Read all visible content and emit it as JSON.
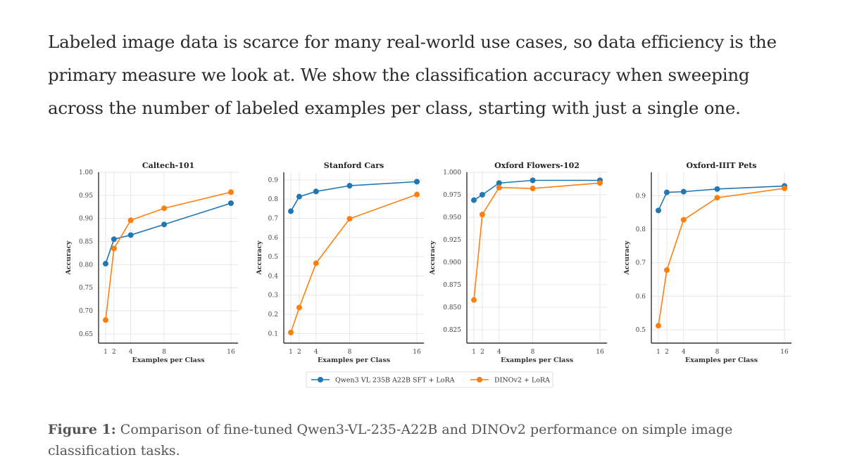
{
  "intro_text": "Labeled image data is scarce for many real-world use cases, so data efficiency is the primary measure we look at. We show the classification accuracy when sweeping across the number of labeled examples per class, starting with just a single one.",
  "caption": {
    "label": "Figure 1:",
    "text": " Comparison of fine-tuned Qwen3-VL-235-A22B and DINOv2 performance on simple image classification tasks."
  },
  "colors": {
    "qwen": "#1f77b4",
    "dino": "#ff7f0e",
    "grid": "#e6e6e6",
    "axis": "#333333"
  },
  "legend": [
    {
      "label": "Qwen3 VL 235B A22B SFT + LoRA",
      "color": "#1f77b4"
    },
    {
      "label": "DINOv2 + LoRA",
      "color": "#ff7f0e"
    }
  ],
  "chart_data": [
    {
      "type": "line",
      "title": "Caltech-101",
      "xlabel": "Examples per Class",
      "ylabel": "Accuracy",
      "x": [
        1,
        2,
        4,
        8,
        16
      ],
      "xticks": [
        "1",
        "2",
        "4",
        "8",
        "16"
      ],
      "yticks": [
        "0.65",
        "0.70",
        "0.75",
        "0.80",
        "0.85",
        "0.90",
        "0.95",
        "1.00"
      ],
      "ylim": [
        0.63,
        1.0
      ],
      "grid": true,
      "series": [
        {
          "name": "Qwen3 VL 235B A22B SFT + LoRA",
          "values": [
            0.802,
            0.855,
            0.864,
            0.887,
            0.933
          ]
        },
        {
          "name": "DINOv2 + LoRA",
          "values": [
            0.68,
            0.835,
            0.896,
            0.922,
            0.957
          ]
        }
      ]
    },
    {
      "type": "line",
      "title": "Stanford Cars",
      "xlabel": "Examples per Class",
      "ylabel": "Accuracy",
      "x": [
        1,
        2,
        4,
        8,
        16
      ],
      "xticks": [
        "1",
        "2",
        "4",
        "8",
        "16"
      ],
      "yticks": [
        "0.1",
        "0.2",
        "0.3",
        "0.4",
        "0.5",
        "0.6",
        "0.7",
        "0.8",
        "0.9"
      ],
      "ylim": [
        0.05,
        0.94
      ],
      "grid": true,
      "series": [
        {
          "name": "Qwen3 VL 235B A22B SFT + LoRA",
          "values": [
            0.737,
            0.813,
            0.84,
            0.87,
            0.891
          ]
        },
        {
          "name": "DINOv2 + LoRA",
          "values": [
            0.105,
            0.235,
            0.466,
            0.698,
            0.824
          ]
        }
      ]
    },
    {
      "type": "line",
      "title": "Oxford Flowers-102",
      "xlabel": "Examples per Class",
      "ylabel": "Accuracy",
      "x": [
        1,
        2,
        4,
        8,
        16
      ],
      "xticks": [
        "1",
        "2",
        "4",
        "8",
        "16"
      ],
      "yticks": [
        "0.825",
        "0.850",
        "0.875",
        "0.900",
        "0.925",
        "0.950",
        "0.975",
        "1.000"
      ],
      "ylim": [
        0.81,
        1.0
      ],
      "grid": true,
      "series": [
        {
          "name": "Qwen3 VL 235B A22B SFT + LoRA",
          "values": [
            0.969,
            0.975,
            0.988,
            0.991,
            0.991
          ]
        },
        {
          "name": "DINOv2 + LoRA",
          "values": [
            0.858,
            0.953,
            0.983,
            0.982,
            0.988
          ]
        }
      ]
    },
    {
      "type": "line",
      "title": "Oxford-IIIT Pets",
      "xlabel": "Examples per Class",
      "ylabel": "Accuracy",
      "x": [
        1,
        2,
        4,
        8,
        16
      ],
      "xticks": [
        "1",
        "2",
        "4",
        "8",
        "16"
      ],
      "yticks": [
        "0.5",
        "0.6",
        "0.7",
        "0.8",
        "0.9"
      ],
      "ylim": [
        0.46,
        0.97
      ],
      "grid": true,
      "series": [
        {
          "name": "Qwen3 VL 235B A22B SFT + LoRA",
          "values": [
            0.856,
            0.91,
            0.912,
            0.92,
            0.929
          ]
        },
        {
          "name": "DINOv2 + LoRA",
          "values": [
            0.512,
            0.678,
            0.828,
            0.894,
            0.922
          ]
        }
      ]
    }
  ]
}
